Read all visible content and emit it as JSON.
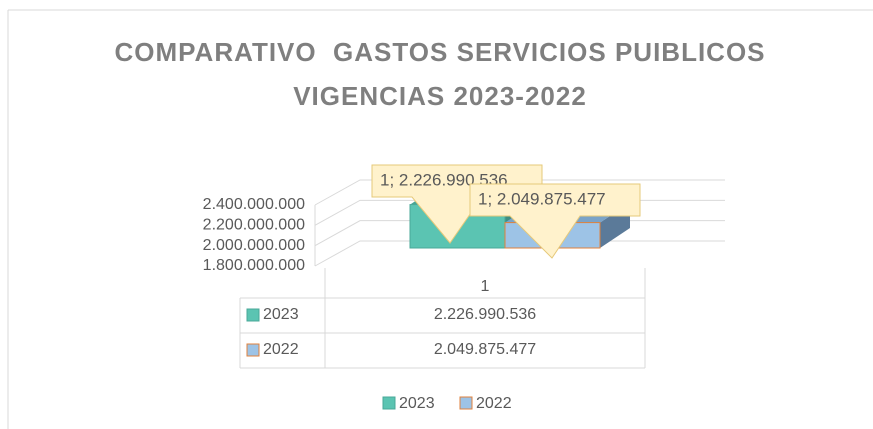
{
  "chart_data": {
    "type": "bar3d",
    "title": "COMPARATIVO  GASTOS SERVICIOS PUIBLICOS VIGENCIAS 2023-2022",
    "categories": [
      "1"
    ],
    "series": [
      {
        "name": "2023",
        "color": "#5bc4b2",
        "border": "#4aa898",
        "values": [
          2226990536
        ],
        "value_labels": [
          "1; 2.226.990.536"
        ],
        "table_labels": [
          "2.226.990.536"
        ]
      },
      {
        "name": "2022",
        "color": "#9dc3e6",
        "border": "#e0823c",
        "values": [
          2049875477
        ],
        "value_labels": [
          "1; 2.049.875.477"
        ],
        "table_labels": [
          "2.049.875.477"
        ]
      }
    ],
    "ylim": [
      1800000000,
      2400000000
    ],
    "yticks": [
      {
        "value": 1800000000,
        "label": "1.800.000.000"
      },
      {
        "value": 2000000000,
        "label": "2.000.000.000"
      },
      {
        "value": 2200000000,
        "label": "2.200.000.000"
      },
      {
        "value": 2400000000,
        "label": "2.400.000.000"
      }
    ],
    "grid": true,
    "data_table": true,
    "legend": "bottom"
  }
}
